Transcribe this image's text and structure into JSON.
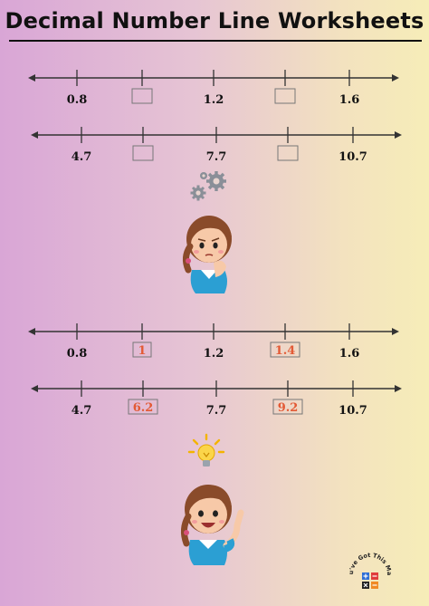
{
  "title": "Decimal Number Line Worksheets",
  "brand": "You've Got This Math",
  "number_lines": [
    {
      "id": "q1",
      "ticks": [
        "0.8",
        "",
        "1.2",
        "",
        "1.6"
      ],
      "answers": [
        "",
        "",
        "",
        "",
        ""
      ]
    },
    {
      "id": "q2",
      "ticks": [
        "4.7",
        "",
        "7.7",
        "",
        "10.7"
      ],
      "answers": [
        "",
        "",
        "",
        "",
        ""
      ]
    },
    {
      "id": "a1",
      "ticks": [
        "0.8",
        "",
        "1.2",
        "",
        "1.6"
      ],
      "answers": [
        "",
        "1",
        "",
        "1.4",
        ""
      ]
    },
    {
      "id": "a2",
      "ticks": [
        "4.7",
        "",
        "7.7",
        "",
        "10.7"
      ],
      "answers": [
        "",
        "6.2",
        "",
        "9.2",
        ""
      ]
    }
  ],
  "colors": {
    "answer": "#e35a35",
    "line": "#333333",
    "box_border": "#777777"
  },
  "icons": {
    "thinking": "gears-icon",
    "idea": "lightbulb-icon"
  }
}
